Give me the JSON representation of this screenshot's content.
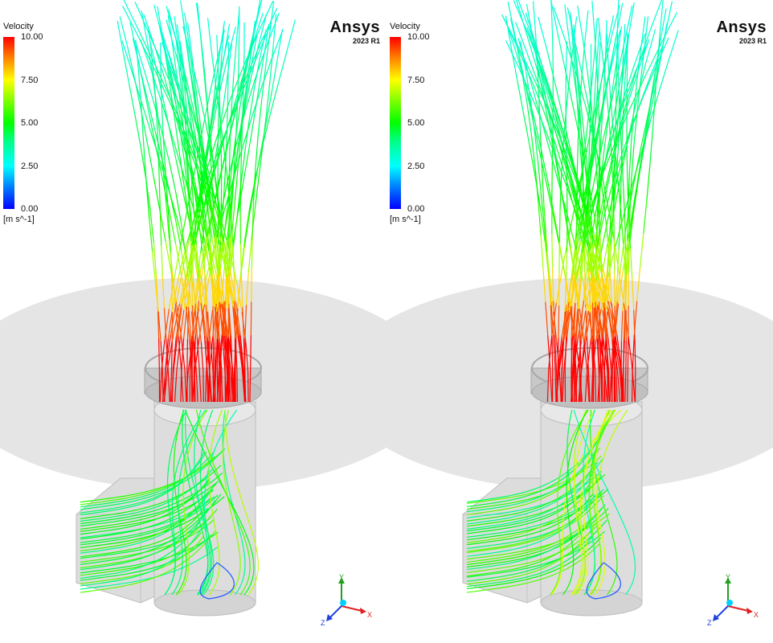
{
  "panels": [
    {
      "legend": {
        "title": "Velocity",
        "ticks": [
          "10.00",
          "7.50",
          "5.00",
          "2.50",
          "0.00"
        ],
        "units": "[m s^-1]",
        "min": 0,
        "max": 10
      },
      "brand": {
        "name": "Ansys",
        "version": "2023 R1"
      },
      "triad": {
        "x": "X",
        "y": "Y",
        "z": "Z"
      }
    },
    {
      "legend": {
        "title": "Velocity",
        "ticks": [
          "10.00",
          "7.50",
          "5.00",
          "2.50",
          "0.00"
        ],
        "units": "[m s^-1]",
        "min": 0,
        "max": 10
      },
      "brand": {
        "name": "Ansys",
        "version": "2023 R1"
      },
      "triad": {
        "x": "X",
        "y": "Y",
        "z": "Z"
      }
    }
  ],
  "colors": {
    "background": "#ffffff",
    "ground_disc": "#e5e5e5",
    "geometry": "#cccccc",
    "colormap": [
      "#0000ff",
      "#00ffff",
      "#00ff00",
      "#ffff00",
      "#ff0000"
    ],
    "axis_x": "#e02020",
    "axis_y": "#20a020",
    "axis_z": "#2040e0"
  }
}
